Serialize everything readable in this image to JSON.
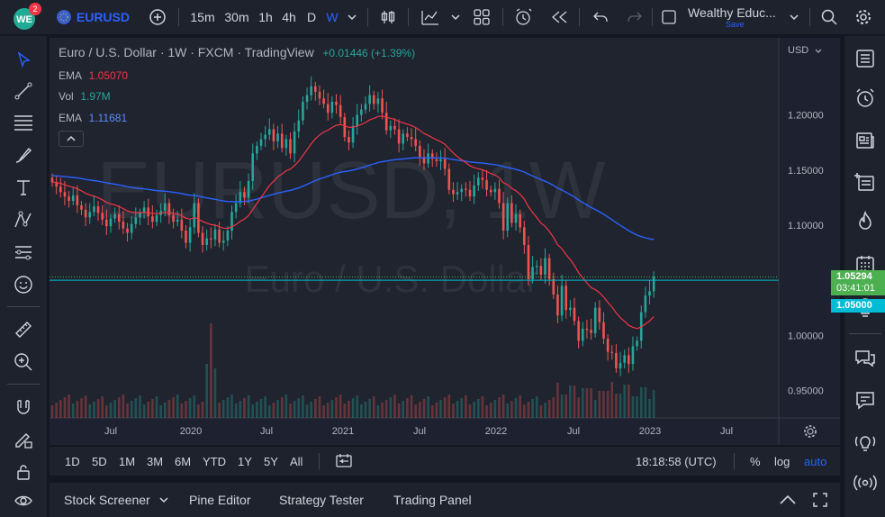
{
  "header": {
    "notification_count": "2",
    "symbol": "EURUSD",
    "intervals": [
      "15m",
      "30m",
      "1h",
      "4h",
      "D",
      "W"
    ],
    "active_interval": "W",
    "layout_name": "Wealthy Educ...",
    "layout_save": "Save"
  },
  "legend": {
    "title": "Euro / U.S. Dollar · 1W · FXCM · TradingView",
    "change": "+0.01446 (+1.39%)",
    "ema1_label": "EMA",
    "ema1_value": "1.05070",
    "vol_label": "Vol",
    "vol_value": "1.97M",
    "ema2_label": "EMA",
    "ema2_value": "1.11681"
  },
  "watermark": {
    "symbol": "EURUSD, 1W",
    "name": "Euro / U.S. Dollar"
  },
  "price_axis": {
    "currency": "USD",
    "labels": [
      "1.20000",
      "1.15000",
      "1.10000",
      "1.00000",
      "0.95000"
    ],
    "last_price": "1.05294",
    "countdown": "03:41:01",
    "ema_price": "1.05000"
  },
  "time_axis": {
    "labels": [
      "Jul",
      "2020",
      "Jul",
      "2021",
      "Jul",
      "2022",
      "Jul",
      "2023",
      "Jul"
    ]
  },
  "range_buttons": [
    "1D",
    "5D",
    "1M",
    "3M",
    "6M",
    "YTD",
    "1Y",
    "5Y",
    "All"
  ],
  "clock": "18:18:58 (UTC)",
  "scale_options": {
    "percent": "%",
    "log": "log",
    "auto": "auto"
  },
  "panels": [
    "Stock Screener",
    "Pine Editor",
    "Strategy Tester",
    "Trading Panel"
  ],
  "colors": {
    "up": "#26a69a",
    "down": "#ef5350",
    "ema_fast": "#f23645",
    "ema_slow": "#2962ff",
    "last": "#4caf50",
    "ema_tag": "#00bcd4",
    "accent": "#2962ff"
  },
  "chart_data": {
    "type": "candlestick",
    "symbol": "EURUSD",
    "interval": "1W",
    "ylim": [
      0.925,
      1.27
    ],
    "x_labels": [
      "Jul",
      "2020",
      "Jul",
      "2021",
      "Jul",
      "2022",
      "Jul",
      "2023",
      "Jul"
    ],
    "closes": [
      1.139,
      1.135,
      1.13,
      1.126,
      1.122,
      1.127,
      1.118,
      1.114,
      1.107,
      1.112,
      1.117,
      1.111,
      1.105,
      1.099,
      1.106,
      1.11,
      1.103,
      1.097,
      1.093,
      1.101,
      1.107,
      1.111,
      1.116,
      1.108,
      1.103,
      1.109,
      1.113,
      1.12,
      1.109,
      1.103,
      1.105,
      1.095,
      1.084,
      1.098,
      1.12,
      1.093,
      1.082,
      1.088,
      1.087,
      1.096,
      1.084,
      1.086,
      1.095,
      1.112,
      1.12,
      1.13,
      1.125,
      1.14,
      1.165,
      1.172,
      1.178,
      1.182,
      1.187,
      1.176,
      1.183,
      1.17,
      1.178,
      1.165,
      1.185,
      1.195,
      1.212,
      1.218,
      1.226,
      1.221,
      1.215,
      1.21,
      1.202,
      1.212,
      1.209,
      1.198,
      1.18,
      1.175,
      1.19,
      1.2,
      1.205,
      1.21,
      1.218,
      1.21,
      1.215,
      1.202,
      1.186,
      1.19,
      1.187,
      1.174,
      1.183,
      1.18,
      1.178,
      1.172,
      1.162,
      1.156,
      1.165,
      1.16,
      1.158,
      1.16,
      1.151,
      1.132,
      1.128,
      1.13,
      1.133,
      1.132,
      1.126,
      1.136,
      1.143,
      1.141,
      1.132,
      1.13,
      1.133,
      1.12,
      1.095,
      1.12,
      1.102,
      1.11,
      1.098,
      1.082,
      1.051,
      1.062,
      1.063,
      1.055,
      1.07,
      1.051,
      1.037,
      1.018,
      1.045,
      1.023,
      1.025,
      1.013,
      0.995,
      1.006,
      1.005,
      1.002,
      1.025,
      1.012,
      0.997,
      0.985,
      0.984,
      0.97,
      0.975,
      0.982,
      0.974,
      0.99,
      0.995,
      1.021,
      1.036,
      1.04,
      1.053
    ],
    "ema_fast_last": 1.0507,
    "ema_slow_last": 1.11681,
    "last_price": 1.05294
  }
}
